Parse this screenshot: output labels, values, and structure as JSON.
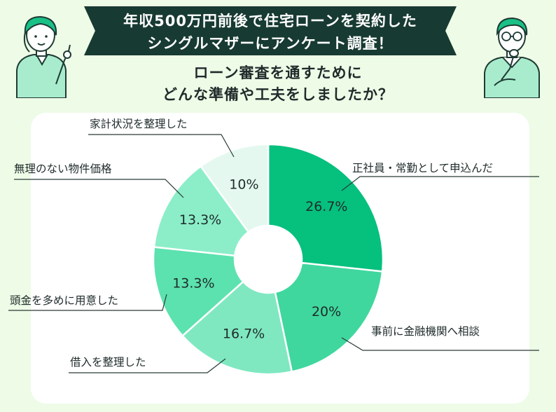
{
  "header": {
    "title_line1": "年収500万円前後で住宅ローンを契約した",
    "title_line2": "シングルマザーにアンケート調査！",
    "question_line1": "ローン審査を通すために",
    "question_line2": "どんな準備や工夫をしましたか？"
  },
  "chart_data": {
    "type": "pie",
    "donut": true,
    "title": "",
    "slices": [
      {
        "label": "正社員・常勤として申込んだ",
        "value": 26.7,
        "display": "26.7%",
        "color": "#06c07e"
      },
      {
        "label": "事前に金融機関へ相談",
        "value": 20,
        "display": "20%",
        "color": "#3fd79e"
      },
      {
        "label": "借入を整理した",
        "value": 16.7,
        "display": "16.7%",
        "color": "#7fe8c1"
      },
      {
        "label": "頭金を多めに用意した",
        "value": 13.3,
        "display": "13.3%",
        "color": "#5ce2ae"
      },
      {
        "label": "無理のない物件価格",
        "value": 13.3,
        "display": "13.3%",
        "color": "#8beec9"
      },
      {
        "label": "家計状況を整理した",
        "value": 10,
        "display": "10%",
        "color": "#e4f8ef"
      }
    ]
  }
}
